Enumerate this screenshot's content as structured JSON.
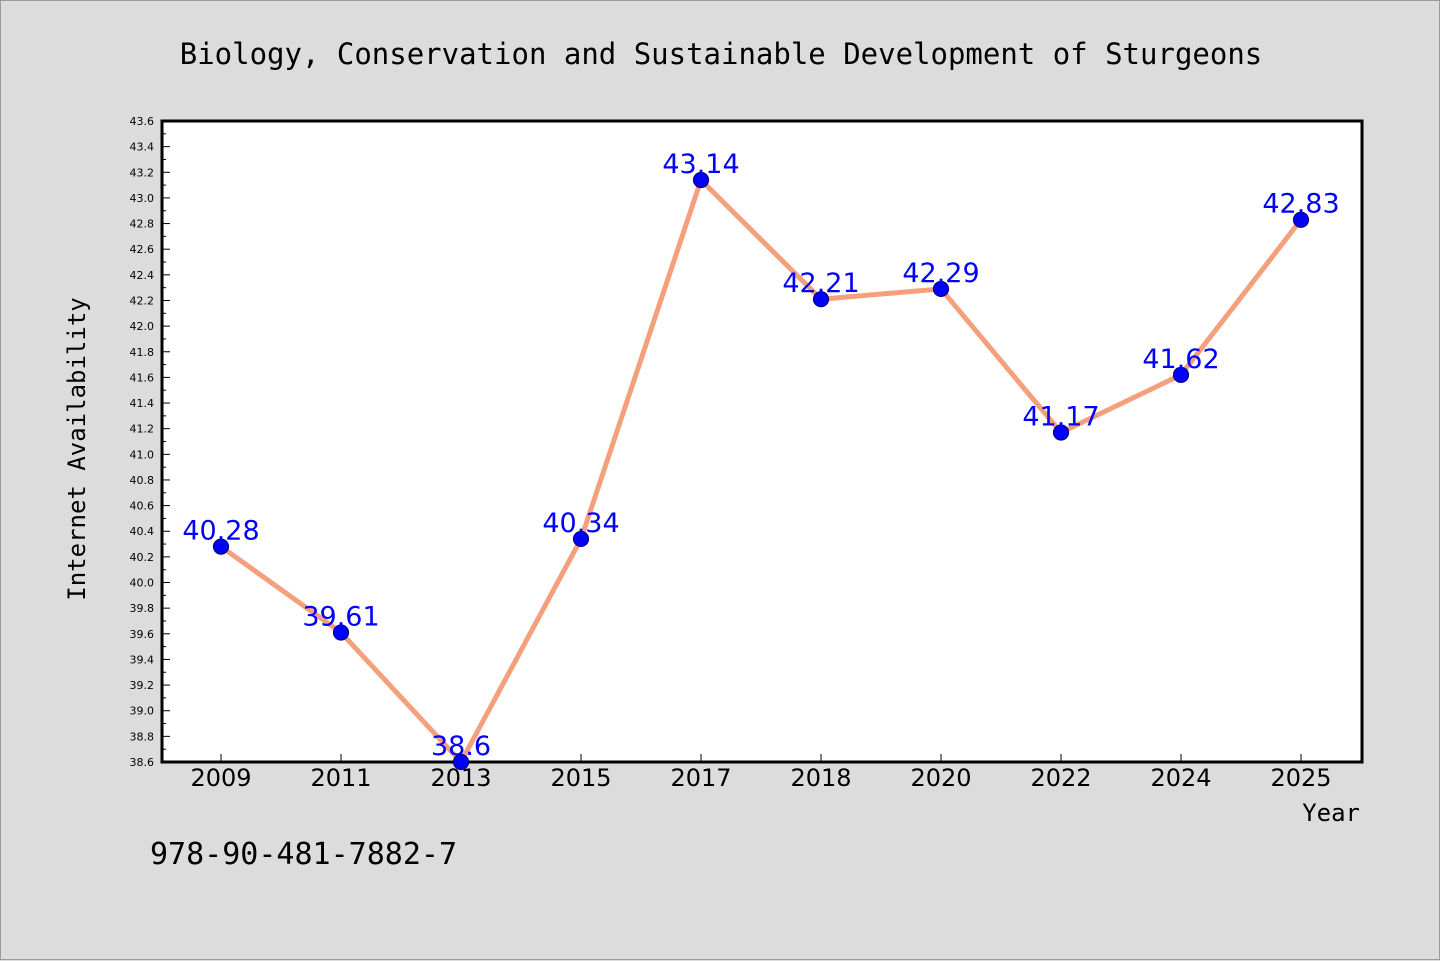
{
  "chart_data": {
    "type": "line",
    "title": "Biology, Conservation and Sustainable Development of Sturgeons",
    "xlabel": "Year",
    "ylabel": "Internet Availability",
    "categories": [
      "2009",
      "2011",
      "2013",
      "2015",
      "2017",
      "2018",
      "2020",
      "2022",
      "2024",
      "2025"
    ],
    "series": [
      {
        "values": [
          40.28,
          39.61,
          38.6,
          40.34,
          43.14,
          42.21,
          42.29,
          41.17,
          41.62,
          42.83
        ],
        "labels": [
          "40.28",
          "39.61",
          "38.6",
          "40.34",
          "43.14",
          "42.21",
          "42.29",
          "41.17",
          "41.62",
          "42.83"
        ]
      }
    ],
    "ylim": [
      38.6,
      43.6
    ],
    "yticks": [
      "38.6",
      "38.8",
      "39.0",
      "39.2",
      "39.4",
      "39.6",
      "39.8",
      "40.0",
      "40.2",
      "40.4",
      "40.6",
      "40.8",
      "41.0",
      "41.2",
      "41.4",
      "41.6",
      "41.8",
      "42.0",
      "42.2",
      "42.4",
      "42.6",
      "42.8",
      "43.0",
      "43.2",
      "43.4",
      "43.6"
    ],
    "grid": false,
    "legend": "none",
    "colors": {
      "line": "#f4a07c",
      "marker": "#0000ff",
      "marker_edge": "#000080",
      "label": "#0000ff",
      "background": "#dcdcdc",
      "plot_background": "#ffffff"
    }
  },
  "footer": {
    "isbn": "978-90-481-7882-7"
  }
}
